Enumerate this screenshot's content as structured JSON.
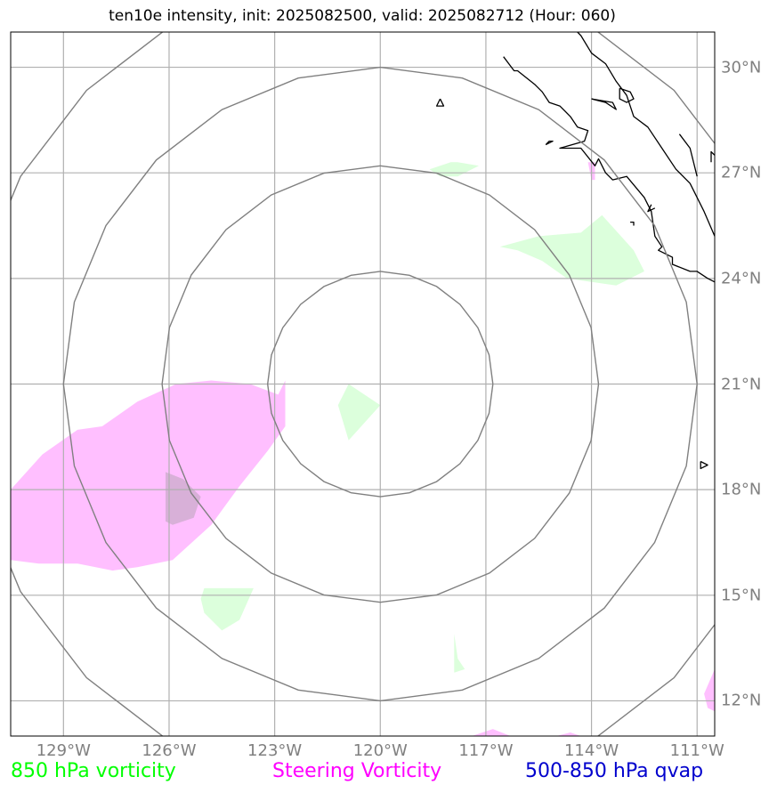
{
  "title": "ten10e intensity, init: 2025082500, valid: 2025082712 (Hour: 060)",
  "map": {
    "lon_min": -130.5,
    "lon_max": -110.5,
    "lat_min": 11,
    "lat_max": 31,
    "storm_center": {
      "lon": -120,
      "lat": 21
    },
    "range_ring_radii_deg": [
      3.2,
      6.2,
      9.0,
      11.8
    ]
  },
  "longitude_labels": [
    {
      "lon": -129,
      "text": "129°W"
    },
    {
      "lon": -126,
      "text": "126°W"
    },
    {
      "lon": -123,
      "text": "123°W"
    },
    {
      "lon": -120,
      "text": "120°W"
    },
    {
      "lon": -117,
      "text": "117°W"
    },
    {
      "lon": -114,
      "text": "114°W"
    },
    {
      "lon": -111,
      "text": "111°W"
    }
  ],
  "latitude_labels": [
    {
      "lat": 30,
      "text": "30°N"
    },
    {
      "lat": 27,
      "text": "27°N"
    },
    {
      "lat": 24,
      "text": "24°N"
    },
    {
      "lat": 21,
      "text": "21°N"
    },
    {
      "lat": 18,
      "text": "18°N"
    },
    {
      "lat": 15,
      "text": "15°N"
    },
    {
      "lat": 12,
      "text": "12°N"
    }
  ],
  "legend": {
    "vorticity_850": {
      "label": "850 hPa vorticity",
      "color": "#00ff00"
    },
    "steering_vorticity": {
      "label": "Steering Vorticity",
      "color": "#ff00ff"
    },
    "qvap": {
      "label": "500-850 hPa qvap",
      "color": "#0000cd"
    }
  },
  "colors": {
    "gridline": "#b0b0b0",
    "range_ring": "#808080",
    "coastline": "#000000",
    "vorticity_fill": "#dcffdc",
    "steering_fill": "#ffbfff",
    "overlap_fill": "#d8b0d8"
  },
  "fields": {
    "steering_vorticity": [
      [
        [
          -130.5,
          18.0
        ],
        [
          -129.6,
          19.0
        ],
        [
          -128.6,
          19.7
        ],
        [
          -127.9,
          19.8
        ],
        [
          -126.9,
          20.5
        ],
        [
          -125.8,
          21.0
        ],
        [
          -124.8,
          21.1
        ],
        [
          -123.7,
          21.0
        ],
        [
          -122.9,
          20.7
        ],
        [
          -122.7,
          21.1
        ],
        [
          -122.7,
          19.8
        ],
        [
          -123.2,
          19.1
        ],
        [
          -124.0,
          18.1
        ],
        [
          -124.8,
          17.0
        ],
        [
          -125.9,
          16.0
        ],
        [
          -126.9,
          15.8
        ],
        [
          -127.6,
          15.7
        ],
        [
          -128.6,
          15.9
        ],
        [
          -129.7,
          15.9
        ],
        [
          -130.5,
          16.0
        ]
      ],
      [
        [
          -114.1,
          27.3
        ],
        [
          -113.9,
          27.3
        ],
        [
          -113.9,
          26.8
        ],
        [
          -114.0,
          26.8
        ]
      ],
      [
        [
          -117.4,
          11.0
        ],
        [
          -116.8,
          11.2
        ],
        [
          -116.3,
          11.0
        ]
      ],
      [
        [
          -110.5,
          12.9
        ],
        [
          -110.8,
          12.2
        ],
        [
          -110.7,
          11.8
        ],
        [
          -110.5,
          11.7
        ]
      ],
      [
        [
          -115.0,
          11.0
        ],
        [
          -114.6,
          11.1
        ],
        [
          -114.3,
          11.0
        ]
      ]
    ],
    "vorticity_850": [
      [
        [
          -121.2,
          20.4
        ],
        [
          -120.9,
          21.0
        ],
        [
          -120.0,
          20.4
        ],
        [
          -120.9,
          19.4
        ]
      ],
      [
        [
          -116.6,
          24.9
        ],
        [
          -115.5,
          25.2
        ],
        [
          -114.3,
          25.3
        ],
        [
          -113.7,
          25.8
        ],
        [
          -112.8,
          24.8
        ],
        [
          -112.5,
          24.2
        ],
        [
          -113.3,
          23.8
        ],
        [
          -114.7,
          24.0
        ],
        [
          -115.4,
          24.5
        ],
        [
          -116.1,
          24.8
        ]
      ],
      [
        [
          -118.0,
          27.3
        ],
        [
          -117.8,
          27.3
        ],
        [
          -117.2,
          27.2
        ],
        [
          -117.8,
          26.9
        ],
        [
          -118.3,
          26.9
        ],
        [
          -118.6,
          27.1
        ]
      ],
      [
        [
          -125.0,
          15.2
        ],
        [
          -124.3,
          15.2
        ],
        [
          -123.6,
          15.2
        ],
        [
          -124.0,
          14.3
        ],
        [
          -124.5,
          14.0
        ],
        [
          -125.0,
          14.5
        ],
        [
          -125.1,
          14.9
        ]
      ],
      [
        [
          -117.9,
          13.9
        ],
        [
          -117.8,
          13.2
        ],
        [
          -117.6,
          12.9
        ],
        [
          -117.9,
          12.8
        ],
        [
          -117.9,
          13.4
        ]
      ],
      [
        [
          -125.7,
          16.9
        ],
        [
          -125.6,
          17.2
        ],
        [
          -125.2,
          17.2
        ],
        [
          -125.4,
          16.9
        ]
      ]
    ],
    "overlap": [
      [
        [
          -126.1,
          18.5
        ],
        [
          -125.6,
          18.3
        ],
        [
          -125.1,
          17.8
        ],
        [
          -125.3,
          17.2
        ],
        [
          -125.9,
          17.0
        ],
        [
          -126.1,
          17.1
        ]
      ]
    ]
  },
  "coastlines": [
    [
      [
        -116.5,
        30.3
      ],
      [
        -116.2,
        29.9
      ],
      [
        -116.1,
        29.9
      ],
      [
        -115.6,
        29.5
      ],
      [
        -115.4,
        29.3
      ],
      [
        -115.2,
        29.0
      ],
      [
        -114.9,
        28.9
      ],
      [
        -114.6,
        28.6
      ],
      [
        -114.4,
        28.3
      ],
      [
        -114.1,
        28.2
      ],
      [
        -114.2,
        27.9
      ],
      [
        -114.9,
        27.7
      ],
      [
        -114.7,
        27.7
      ],
      [
        -114.3,
        27.7
      ],
      [
        -113.9,
        27.2
      ],
      [
        -113.8,
        27.4
      ],
      [
        -113.6,
        27.0
      ],
      [
        -113.4,
        26.8
      ],
      [
        -113.0,
        26.9
      ],
      [
        -112.5,
        26.3
      ],
      [
        -112.3,
        25.9
      ],
      [
        -112.2,
        25.2
      ],
      [
        -112.0,
        24.9
      ],
      [
        -112.1,
        24.8
      ],
      [
        -111.7,
        24.6
      ],
      [
        -111.7,
        24.4
      ],
      [
        -111.2,
        24.2
      ],
      [
        -111.0,
        24.2
      ],
      [
        -110.7,
        24.0
      ],
      [
        -110.5,
        23.9
      ]
    ],
    [
      [
        -110.5,
        25.2
      ],
      [
        -110.8,
        25.9
      ],
      [
        -111.2,
        26.7
      ],
      [
        -111.6,
        27.1
      ],
      [
        -112.0,
        27.7
      ],
      [
        -112.4,
        28.3
      ],
      [
        -112.8,
        28.6
      ],
      [
        -113.0,
        29.2
      ],
      [
        -113.3,
        29.6
      ],
      [
        -113.6,
        30.1
      ],
      [
        -114.0,
        30.4
      ],
      [
        -114.3,
        30.9
      ],
      [
        -114.4,
        31.0
      ]
    ],
    [
      [
        -111.0,
        26.9
      ],
      [
        -111.2,
        27.7
      ],
      [
        -111.5,
        28.1
      ]
    ],
    [
      [
        -113.2,
        29.4
      ],
      [
        -112.9,
        29.3
      ],
      [
        -112.8,
        29.1
      ],
      [
        -113.0,
        29.0
      ],
      [
        -113.2,
        29.1
      ],
      [
        -113.2,
        29.4
      ]
    ],
    [
      [
        -114.0,
        29.1
      ],
      [
        -113.6,
        29.0
      ],
      [
        -113.3,
        28.8
      ],
      [
        -113.4,
        29.0
      ],
      [
        -114.0,
        29.1
      ]
    ],
    [
      [
        -115.3,
        27.8
      ],
      [
        -115.2,
        27.9
      ],
      [
        -115.1,
        27.9
      ],
      [
        -115.3,
        27.8
      ]
    ],
    [
      [
        -110.5,
        27.5
      ],
      [
        -110.6,
        27.6
      ],
      [
        -110.6,
        27.3
      ]
    ],
    [
      [
        -118.3,
        29.1
      ],
      [
        -118.2,
        28.9
      ],
      [
        -118.4,
        28.9
      ],
      [
        -118.3,
        29.1
      ]
    ],
    [
      [
        -110.9,
        18.8
      ],
      [
        -110.7,
        18.7
      ],
      [
        -110.9,
        18.6
      ],
      [
        -110.9,
        18.8
      ]
    ],
    [
      [
        -112.3,
        26.1
      ],
      [
        -112.4,
        25.9
      ],
      [
        -112.2,
        26.0
      ]
    ],
    [
      [
        -112.9,
        25.6
      ],
      [
        -112.8,
        25.6
      ],
      [
        -112.8,
        25.5
      ]
    ]
  ]
}
